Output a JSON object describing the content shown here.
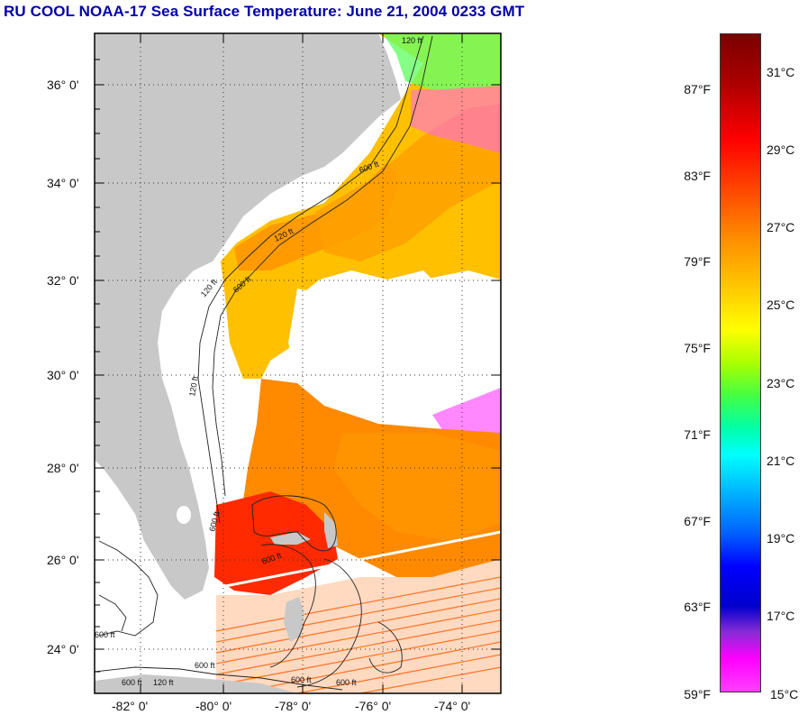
{
  "title": "RU COOL  NOAA-17  Sea Surface Temperature:  June 21, 2004 0233 GMT",
  "map": {
    "latitude_labels": [
      "36° 0'",
      "34° 0'",
      "32° 0'",
      "30° 0'",
      "28° 0'",
      "26° 0'",
      "24° 0'"
    ],
    "longitude_labels": [
      "-82° 0'",
      "-80° 0'",
      "-78° 0'",
      "-76° 0'",
      "-74° 0'"
    ],
    "isobath_labels": [
      "120 ft",
      "600 ft",
      "120 ft",
      "600 ft",
      "120 ft",
      "600 ft",
      "120 ft",
      "600 ft",
      "600 ft",
      "600 ft",
      "600 ft",
      "600 ft",
      "600 ft",
      "120 ft"
    ],
    "colors": {
      "land": "#c8c8c8",
      "cloud": "#ffffff",
      "frame": "#000000"
    }
  },
  "colorbar": {
    "fahrenheit_labels": [
      "87°F",
      "83°F",
      "79°F",
      "75°F",
      "71°F",
      "67°F",
      "63°F",
      "59°F"
    ],
    "celsius_labels": [
      "31°C",
      "29°C",
      "27°C",
      "25°C",
      "23°C",
      "21°C",
      "19°C",
      "17°C",
      "15°C"
    ]
  }
}
